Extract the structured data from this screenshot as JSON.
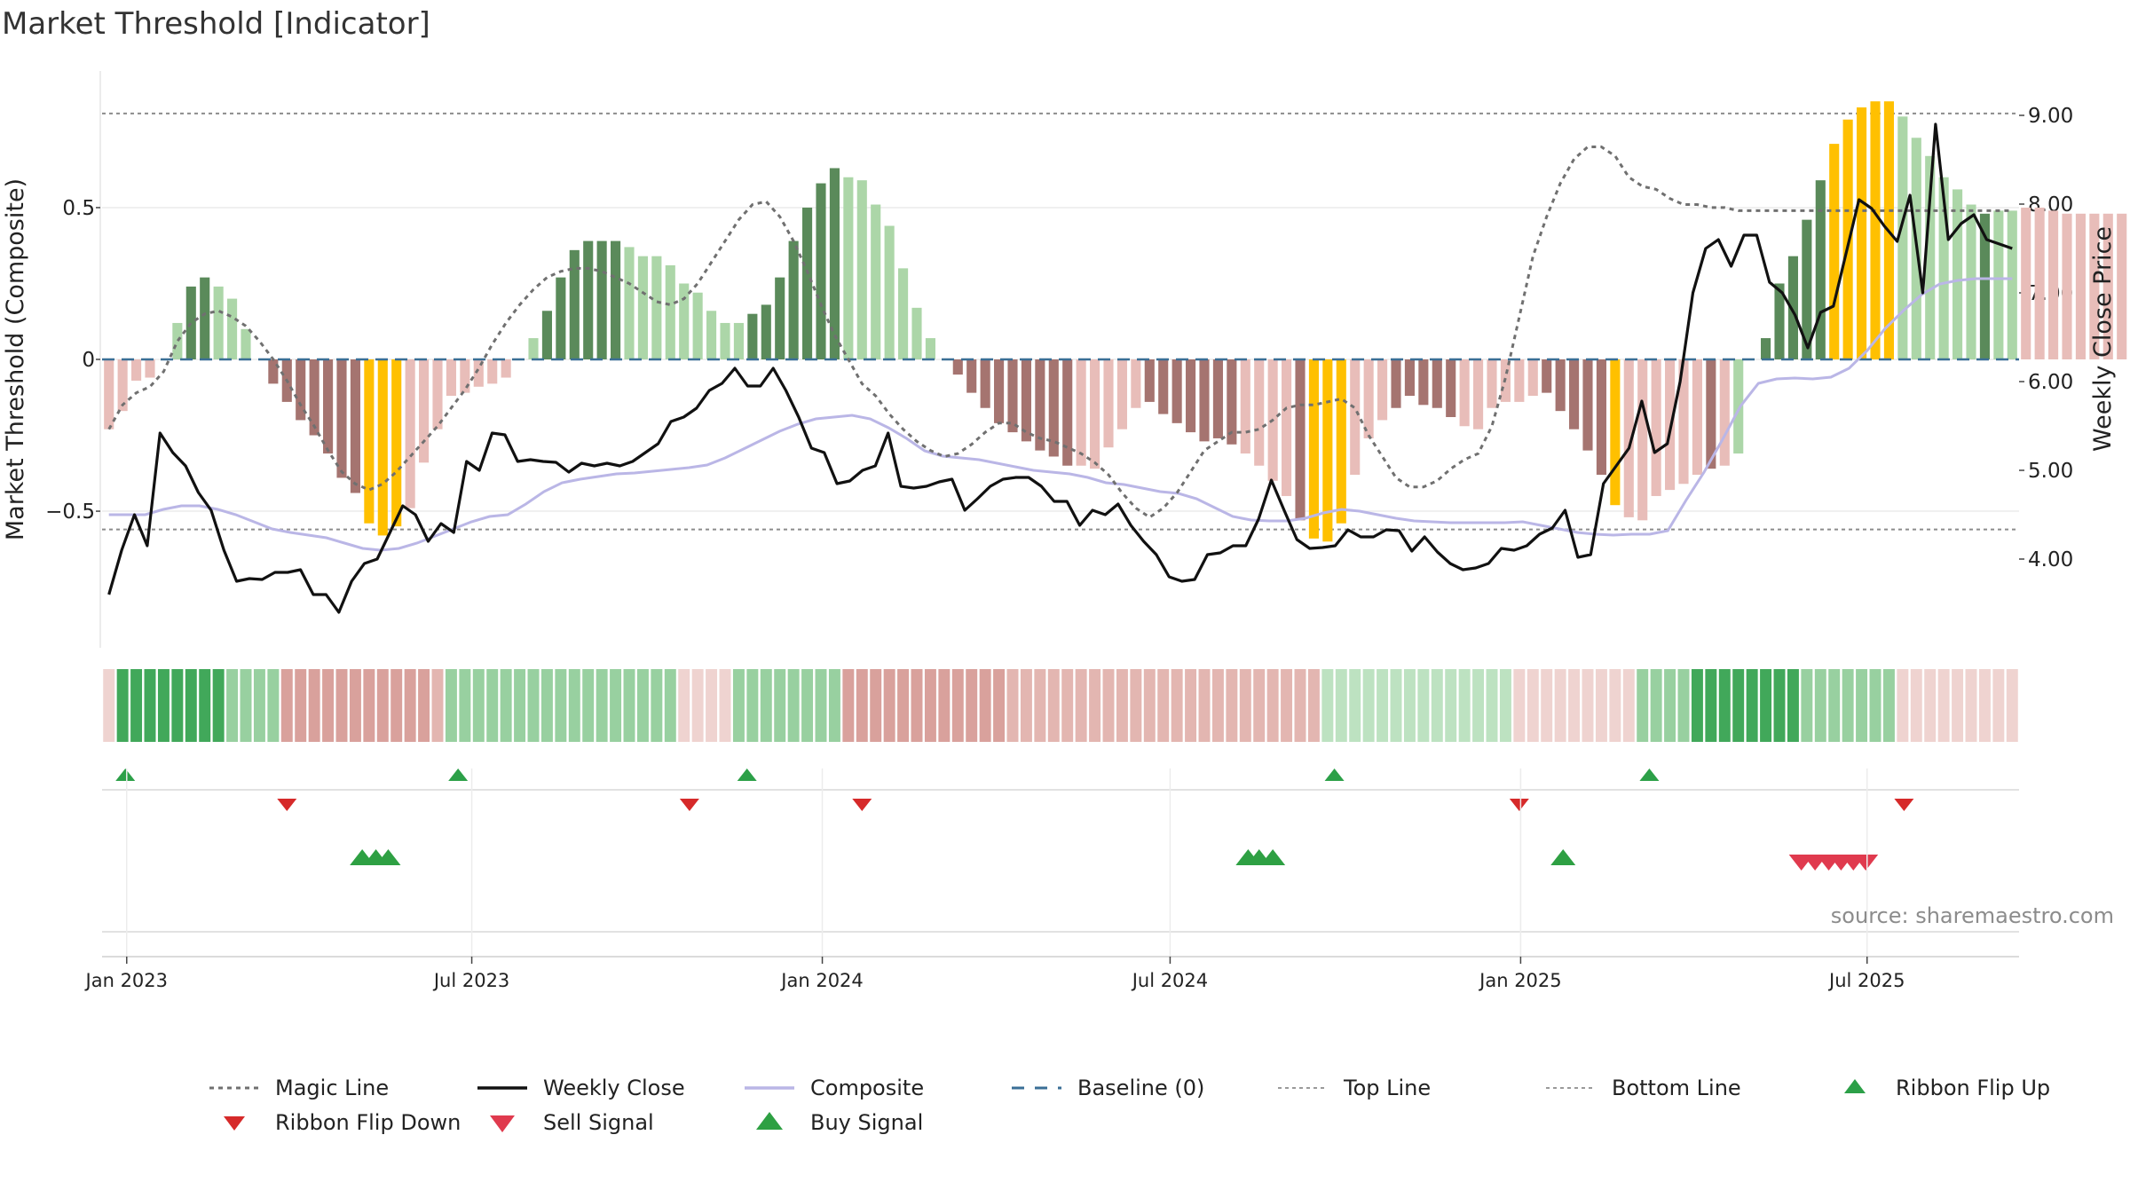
{
  "chart_data": {
    "type": "bar",
    "title": "Market Threshold [Indicator]",
    "ylabel": "Market Threshold (Composite)",
    "y2label": "Weekly Close Price",
    "source": "source: sharemaestro.com",
    "ylim": [
      -0.95,
      0.95
    ],
    "y2lim": [
      3.0,
      9.5
    ],
    "yticks": [
      {
        "v": 0.5,
        "label": "0.5"
      },
      {
        "v": 0,
        "label": "0"
      },
      {
        "v": -0.5,
        "label": "−0.5"
      }
    ],
    "y2ticks": [
      {
        "v": 9,
        "label": "9.00"
      },
      {
        "v": 8,
        "label": "8.00"
      },
      {
        "v": 7,
        "label": "7.00"
      },
      {
        "v": 6,
        "label": "6.00"
      },
      {
        "v": 5,
        "label": "5.00"
      },
      {
        "v": 4,
        "label": "4.00"
      }
    ],
    "xlim": [
      -0.5,
      139.5
    ],
    "xticks": [
      {
        "v": 1.3,
        "label": "Jan 2023"
      },
      {
        "v": 26.5,
        "label": "Jul 2023"
      },
      {
        "v": 52.1,
        "label": "Jan 2024"
      },
      {
        "v": 77.5,
        "label": "Jul 2024"
      },
      {
        "v": 103.1,
        "label": "Jan 2025"
      },
      {
        "v": 128.4,
        "label": "Jul 2025"
      }
    ],
    "top_line": 0.81,
    "bottom_line": -0.56,
    "composite_bars": [
      -0.23,
      -0.17,
      -0.07,
      -0.06,
      0.0,
      0.12,
      0.24,
      0.27,
      0.24,
      0.2,
      0.1,
      0.0,
      -0.08,
      -0.14,
      -0.2,
      -0.25,
      -0.31,
      -0.39,
      -0.44,
      -0.54,
      -0.58,
      -0.55,
      -0.49,
      -0.34,
      -0.23,
      -0.12,
      -0.11,
      -0.09,
      -0.08,
      -0.06,
      0.0,
      0.07,
      0.16,
      0.27,
      0.36,
      0.39,
      0.39,
      0.39,
      0.37,
      0.34,
      0.34,
      0.31,
      0.25,
      0.22,
      0.16,
      0.12,
      0.12,
      0.15,
      0.18,
      0.27,
      0.39,
      0.5,
      0.58,
      0.63,
      0.6,
      0.59,
      0.51,
      0.44,
      0.3,
      0.17,
      0.07,
      0.0,
      -0.05,
      -0.11,
      -0.16,
      -0.21,
      -0.24,
      -0.27,
      -0.3,
      -0.32,
      -0.35,
      -0.35,
      -0.36,
      -0.29,
      -0.23,
      -0.16,
      -0.14,
      -0.18,
      -0.21,
      -0.24,
      -0.27,
      -0.26,
      -0.28,
      -0.31,
      -0.35,
      -0.4,
      -0.45,
      -0.53,
      -0.59,
      -0.6,
      -0.54,
      -0.38,
      -0.26,
      -0.2,
      -0.16,
      -0.12,
      -0.15,
      -0.16,
      -0.19,
      -0.22,
      -0.23,
      -0.16,
      -0.14,
      -0.14,
      -0.12,
      -0.11,
      -0.17,
      -0.23,
      -0.3,
      -0.38,
      -0.48,
      -0.52,
      -0.53,
      -0.45,
      -0.43,
      -0.41,
      -0.38,
      -0.36,
      -0.35,
      -0.31,
      0.0,
      0.07,
      0.25,
      0.34,
      0.46,
      0.59,
      0.71,
      0.79,
      0.83,
      0.85,
      0.85,
      0.8,
      0.73,
      0.67,
      0.6,
      0.56,
      0.51,
      0.48,
      0.49,
      0.49,
      0.5,
      0.5,
      0.49,
      0.48,
      0.48,
      0.48,
      0.48,
      0.48,
      0.48
    ],
    "bar_colors": {
      "dark_green": "#5a8a5a",
      "light_green": "#acd6a8",
      "dark_red": "#a57470",
      "light_red": "#e8bdb9",
      "gold": "#ffc000"
    },
    "bar_classes": "DDDDDLLLLLLLRRRRRRRRYYYDDDDDDDLLLLLLLLLLLLLLLLLLLLLLLLLLLLLLRRRRRRRRRRRRRRRRRRRRRRRRRRRRRRRRRRRRRRRRRRRRRRRRRRRRRRRRRRRRRRRRRRRRRRRRRR",
    "bar_class_ranges": [
      {
        "from": 0,
        "to": 3,
        "c": "light_red"
      },
      {
        "from": 4,
        "to": 5,
        "c": "light_green"
      },
      {
        "from": 6,
        "to": 7,
        "c": "dark_green"
      },
      {
        "from": 8,
        "to": 10,
        "c": "light_green"
      },
      {
        "from": 11,
        "to": 18,
        "c": "dark_red"
      },
      {
        "from": 19,
        "to": 21,
        "c": "gold"
      },
      {
        "from": 22,
        "to": 29,
        "c": "light_red"
      },
      {
        "from": 30,
        "to": 31,
        "c": "light_green"
      },
      {
        "from": 32,
        "to": 37,
        "c": "dark_green"
      },
      {
        "from": 38,
        "to": 46,
        "c": "light_green"
      },
      {
        "from": 47,
        "to": 53,
        "c": "dark_green"
      },
      {
        "from": 54,
        "to": 60,
        "c": "light_green"
      },
      {
        "from": 61,
        "to": 70,
        "c": "dark_red"
      },
      {
        "from": 71,
        "to": 75,
        "c": "light_red"
      },
      {
        "from": 76,
        "to": 82,
        "c": "dark_red"
      },
      {
        "from": 83,
        "to": 86,
        "c": "light_red"
      },
      {
        "from": 87,
        "to": 87,
        "c": "dark_red"
      },
      {
        "from": 88,
        "to": 90,
        "c": "gold"
      },
      {
        "from": 91,
        "to": 93,
        "c": "light_red"
      },
      {
        "from": 94,
        "to": 98,
        "c": "dark_red"
      },
      {
        "from": 99,
        "to": 104,
        "c": "light_red"
      },
      {
        "from": 105,
        "to": 109,
        "c": "dark_red"
      },
      {
        "from": 110,
        "to": 110,
        "c": "gold"
      },
      {
        "from": 111,
        "to": 116,
        "c": "light_red"
      },
      {
        "from": 117,
        "to": 117,
        "c": "dark_red"
      },
      {
        "from": 118,
        "to": 118,
        "c": "light_red"
      },
      {
        "from": 119,
        "to": 119,
        "c": "light_green"
      },
      {
        "from": 120,
        "to": 123,
        "c": "dark_green"
      },
      {
        "from": 124,
        "to": 125,
        "c": "dark_green"
      },
      {
        "from": 126,
        "to": 130,
        "c": "gold"
      },
      {
        "from": 131,
        "to": 133,
        "c": "light_green"
      },
      {
        "from": 134,
        "to": 136,
        "c": "light_green"
      },
      {
        "from": 137,
        "to": 137,
        "c": "dark_green"
      },
      {
        "from": 138,
        "to": 139,
        "c": "light_green"
      }
    ],
    "magic_line": [
      -0.23,
      -0.15,
      -0.11,
      -0.09,
      -0.04,
      0.06,
      0.12,
      0.15,
      0.16,
      0.14,
      0.11,
      0.06,
      0.0,
      -0.07,
      -0.15,
      -0.22,
      -0.3,
      -0.37,
      -0.41,
      -0.43,
      -0.41,
      -0.37,
      -0.32,
      -0.27,
      -0.22,
      -0.16,
      -0.1,
      -0.03,
      0.05,
      0.12,
      0.18,
      0.23,
      0.27,
      0.29,
      0.3,
      0.3,
      0.29,
      0.27,
      0.25,
      0.22,
      0.19,
      0.18,
      0.2,
      0.25,
      0.32,
      0.39,
      0.46,
      0.51,
      0.52,
      0.47,
      0.39,
      0.29,
      0.18,
      0.08,
      0.0,
      -0.08,
      -0.12,
      -0.18,
      -0.23,
      -0.27,
      -0.3,
      -0.32,
      -0.31,
      -0.28,
      -0.24,
      -0.21,
      -0.21,
      -0.24,
      -0.26,
      -0.27,
      -0.29,
      -0.31,
      -0.34,
      -0.38,
      -0.44,
      -0.49,
      -0.52,
      -0.49,
      -0.44,
      -0.37,
      -0.3,
      -0.27,
      -0.24,
      -0.24,
      -0.23,
      -0.2,
      -0.16,
      -0.15,
      -0.15,
      -0.14,
      -0.13,
      -0.16,
      -0.25,
      -0.32,
      -0.39,
      -0.42,
      -0.42,
      -0.4,
      -0.36,
      -0.33,
      -0.31,
      -0.22,
      -0.06,
      0.14,
      0.34,
      0.47,
      0.58,
      0.66,
      0.7,
      0.7,
      0.67,
      0.6,
      0.57,
      0.56,
      0.53,
      0.51,
      0.51,
      0.5,
      0.5,
      0.49,
      0.49,
      0.49,
      0.49,
      0.49,
      0.49,
      0.49,
      0.49,
      0.49,
      0.49,
      0.49,
      0.49,
      0.49,
      0.49,
      0.49,
      0.49,
      0.49,
      0.49,
      0.49,
      0.49,
      0.49
    ],
    "magic_line_x": [
      0,
      1,
      2,
      3,
      4,
      5,
      6,
      7,
      8,
      9,
      10,
      11,
      12,
      13,
      14,
      15,
      16,
      17,
      18,
      19,
      20,
      21,
      22,
      23,
      24,
      25,
      26,
      27,
      28,
      29,
      30,
      31,
      32,
      33,
      34,
      35,
      36,
      37,
      38,
      39,
      40,
      41,
      42,
      43,
      44,
      45,
      46,
      47,
      48,
      49,
      50,
      51,
      52,
      53,
      54,
      55,
      56,
      57,
      58,
      59,
      60,
      61,
      62,
      63,
      64,
      65,
      66,
      67,
      68,
      69,
      70,
      71,
      72,
      73,
      74,
      75,
      76,
      77,
      78,
      79,
      80,
      81,
      82,
      83,
      84,
      85,
      86,
      87,
      88,
      89,
      90,
      91,
      92,
      93,
      94,
      95,
      96,
      97,
      98,
      99,
      100,
      101,
      102,
      103,
      104,
      105,
      106,
      107,
      108,
      109,
      110,
      111,
      112,
      113,
      114,
      115,
      116,
      117,
      118,
      119,
      120,
      121,
      122,
      123,
      124,
      125,
      126,
      127,
      128,
      129,
      130,
      131,
      132,
      133,
      134,
      135,
      136,
      137,
      138,
      139
    ],
    "composite_line": [
      4.5,
      4.5,
      4.5,
      4.56,
      4.6,
      4.6,
      4.56,
      4.5,
      4.42,
      4.34,
      4.3,
      4.27,
      4.24,
      4.18,
      4.12,
      4.1,
      4.12,
      4.18,
      4.26,
      4.34,
      4.42,
      4.48,
      4.5,
      4.62,
      4.76,
      4.86,
      4.9,
      4.93,
      4.96,
      4.97,
      4.99,
      5.01,
      5.03,
      5.06,
      5.14,
      5.24,
      5.34,
      5.44,
      5.52,
      5.58,
      5.6,
      5.62,
      5.58,
      5.48,
      5.36,
      5.22,
      5.16,
      5.14,
      5.12,
      5.08,
      5.04,
      5.0,
      4.98,
      4.96,
      4.92,
      4.86,
      4.84,
      4.8,
      4.76,
      4.74,
      4.68,
      4.58,
      4.48,
      4.44,
      4.43,
      4.43,
      4.46,
      4.52,
      4.56,
      4.54,
      4.5,
      4.46,
      4.43,
      4.42,
      4.41,
      4.41,
      4.41,
      4.41,
      4.42,
      4.38,
      4.34,
      4.3,
      4.28,
      4.27,
      4.28,
      4.28,
      4.32,
      4.66,
      4.98,
      5.34,
      5.72,
      5.98,
      6.03,
      6.04,
      6.03,
      6.05,
      6.15,
      6.35,
      6.6,
      6.8,
      6.98,
      7.1,
      7.14,
      7.16,
      7.16,
      7.16
    ],
    "composite_line_x": [
      0,
      1,
      3,
      5,
      6,
      8,
      9,
      10,
      11,
      12,
      13,
      14,
      16,
      17,
      18,
      19,
      20,
      21,
      22,
      23,
      24,
      25,
      26,
      27,
      28,
      29,
      30,
      31,
      32,
      34,
      36,
      38,
      40,
      42,
      44,
      46,
      48,
      50,
      52,
      54,
      55,
      57,
      59,
      61,
      63,
      65,
      67,
      69,
      71,
      73,
      75,
      77,
      79,
      81,
      83,
      85,
      87,
      89,
      91,
      93,
      95,
      97,
      99,
      101,
      103,
      105,
      107,
      109,
      111,
      113,
      115,
      117,
      119,
      121,
      123,
      125,
      127,
      129,
      131,
      133,
      135,
      137,
      139,
      139,
      139,
      139,
      139,
      139,
      139,
      139,
      139,
      139,
      139,
      139,
      139,
      139,
      139,
      139,
      139,
      139,
      139,
      139,
      139,
      139,
      139,
      139
    ],
    "weekly_close": [
      3.6,
      4.1,
      4.5,
      4.15,
      5.42,
      5.2,
      5.05,
      4.75,
      4.55,
      4.1,
      3.75,
      3.78,
      3.77,
      3.85,
      3.85,
      3.88,
      3.6,
      3.6,
      3.4,
      3.75,
      3.95,
      4.0,
      4.3,
      4.6,
      4.5,
      4.2,
      4.4,
      4.3,
      5.1,
      5.0,
      5.42,
      5.4,
      5.1,
      5.12,
      5.1,
      5.09,
      4.98,
      5.08,
      5.05,
      5.08,
      5.05,
      5.1,
      5.2,
      5.3,
      5.55,
      5.6,
      5.7,
      5.9,
      5.98,
      6.15,
      5.95,
      5.95,
      6.15,
      5.9,
      5.6,
      5.25,
      5.2,
      4.85,
      4.88,
      5.0,
      5.05,
      5.42,
      4.82,
      4.8,
      4.82,
      4.87,
      4.9,
      4.55,
      4.68,
      4.82,
      4.9,
      4.92,
      4.92,
      4.82,
      4.65,
      4.65,
      4.38,
      4.55,
      4.5,
      4.62,
      4.38,
      4.2,
      4.05,
      3.8,
      3.75,
      3.77,
      4.05,
      4.07,
      4.15,
      4.15,
      4.45,
      4.89,
      4.55,
      4.22,
      4.12,
      4.13,
      4.15,
      4.33,
      4.25,
      4.25,
      4.33,
      4.32,
      4.09,
      4.25,
      4.08,
      3.95,
      3.88,
      3.9,
      3.95,
      4.12,
      4.1,
      4.15,
      4.28,
      4.35,
      4.55,
      4.02,
      4.05,
      4.85,
      5.05,
      5.25,
      5.78,
      5.2,
      5.3,
      6.0,
      7.0,
      7.5,
      7.6,
      7.3,
      7.65,
      7.65,
      7.12,
      7.0,
      6.75,
      6.38,
      6.78,
      6.85,
      7.45,
      8.05,
      7.95,
      7.75,
      7.58,
      8.1,
      7.0,
      8.9,
      7.6,
      7.78,
      7.88,
      7.6,
      7.55,
      7.5
    ],
    "weekly_close_x": [
      0,
      1,
      2,
      3,
      4,
      5,
      6,
      7,
      8,
      9,
      10,
      11,
      12,
      13,
      14,
      15,
      16,
      17,
      18,
      19,
      20,
      21,
      22,
      23,
      24,
      25,
      26,
      27,
      28,
      29,
      30,
      31,
      32,
      33,
      34,
      35,
      36,
      37,
      38,
      39,
      40,
      41,
      42,
      43,
      44,
      45,
      46,
      47,
      48,
      49,
      50,
      51,
      52,
      53,
      54,
      55,
      56,
      57,
      58,
      59,
      60,
      61,
      62,
      63,
      64,
      65,
      66,
      67,
      68,
      69,
      70,
      71,
      72,
      73,
      74,
      75,
      76,
      77,
      78,
      79,
      80,
      81,
      82,
      83,
      84,
      85,
      86,
      87,
      88,
      89,
      90,
      91,
      92,
      93,
      94,
      95,
      96,
      97,
      98,
      99,
      100,
      101,
      102,
      103,
      104,
      105,
      106,
      107,
      108,
      109,
      110,
      111,
      112,
      113,
      114,
      115,
      116,
      117,
      118,
      119,
      120,
      121,
      122,
      123,
      124,
      125,
      126,
      127,
      128,
      129,
      130,
      131,
      132,
      133,
      134,
      135,
      136,
      137,
      138,
      139,
      139,
      139,
      139,
      139,
      139,
      139,
      139,
      139
    ],
    "ribbon_columns": 140,
    "ribbon_colors": {
      "g1": "#41a85a",
      "g2": "#6dbd79",
      "g3": "#98d0a0",
      "g4": "#bde2c1",
      "r1": "#d9a19c",
      "r2": "#e3b6b1",
      "r3": "#efd3d0"
    },
    "ribbon_ranges": [
      {
        "from": 0,
        "to": 0,
        "c": "r3"
      },
      {
        "from": 1,
        "to": 8,
        "c": "g1"
      },
      {
        "from": 9,
        "to": 12,
        "c": "g3"
      },
      {
        "from": 13,
        "to": 23,
        "c": "r1"
      },
      {
        "from": 24,
        "to": 24,
        "c": "r2"
      },
      {
        "from": 25,
        "to": 41,
        "c": "g3"
      },
      {
        "from": 42,
        "to": 45,
        "c": "r3"
      },
      {
        "from": 46,
        "to": 53,
        "c": "g3"
      },
      {
        "from": 54,
        "to": 65,
        "c": "r1"
      },
      {
        "from": 66,
        "to": 77,
        "c": "r2"
      },
      {
        "from": 78,
        "to": 88,
        "c": "r2"
      },
      {
        "from": 89,
        "to": 102,
        "c": "g4"
      },
      {
        "from": 103,
        "to": 111,
        "c": "r3"
      },
      {
        "from": 112,
        "to": 115,
        "c": "g3"
      },
      {
        "from": 116,
        "to": 123,
        "c": "g1"
      },
      {
        "from": 124,
        "to": 130,
        "c": "g3"
      },
      {
        "from": 131,
        "to": 139,
        "c": "r3"
      }
    ],
    "ribbon_flip_up_x": [
      1.2,
      25.5,
      46.6,
      89.5,
      112.5
    ],
    "ribbon_flip_down_x": [
      13.0,
      42.4,
      55.0,
      103.0,
      131.1
    ],
    "buy_signal_x": [
      18.5,
      19.5,
      20.4,
      83.2,
      84.0,
      85.0,
      106.2
    ],
    "sell_signal_x": [
      123.6,
      124.6,
      125.6,
      126.5,
      127.4,
      128.3
    ],
    "colors": {
      "magic": "#707070",
      "weekly": "#111111",
      "composite": "#bab6e6",
      "baseline": "#3a6f96",
      "ref": "#8c8c8c",
      "flip_up": "#2ca048",
      "flip_down": "#d62a2a",
      "sell": "#e03a4e",
      "buy": "#2ea043"
    }
  },
  "legend": [
    {
      "label": "Magic Line",
      "symbol": "dotted-gray"
    },
    {
      "label": "Weekly Close",
      "symbol": "solid-black"
    },
    {
      "label": "Composite",
      "symbol": "solid-lavender"
    },
    {
      "label": "Baseline (0)",
      "symbol": "dashed-blue"
    },
    {
      "label": "Top Line",
      "symbol": "dotted-lightgray"
    },
    {
      "label": "Bottom Line",
      "symbol": "dotted-lightgray"
    },
    {
      "label": "Ribbon Flip Up",
      "symbol": "triangle-up-green"
    },
    {
      "label": "Ribbon Flip Down",
      "symbol": "triangle-down-red"
    },
    {
      "label": "Sell Signal",
      "symbol": "triangle-down-pink"
    },
    {
      "label": "Buy Signal",
      "symbol": "triangle-up-green-large"
    }
  ]
}
